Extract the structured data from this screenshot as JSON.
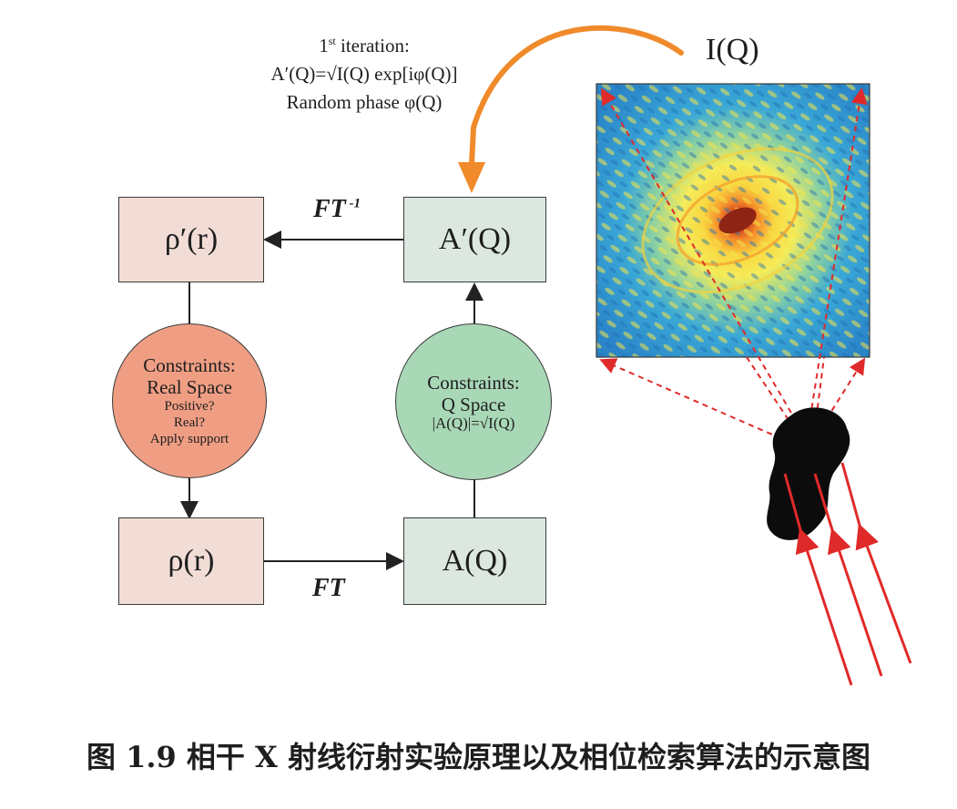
{
  "annotation": {
    "line1_pre": "1",
    "line1_sup": "st",
    "line1_post": " iteration:",
    "line2": "A′(Q)=√I(Q) exp[iφ(Q)]",
    "line3": "Random phase φ(Q)"
  },
  "intensity_label": "I(Q)",
  "boxes": {
    "rho_prime": "ρ′(r)",
    "a_prime": "A′(Q)",
    "rho": "ρ(r)",
    "a": "A(Q)"
  },
  "ft_inverse": {
    "base": "FT",
    "sup": " -1"
  },
  "ft_forward": "FT",
  "real_constraints": {
    "title1": "Constraints:",
    "title2": "Real Space",
    "item1": "Positive?",
    "item2": "Real?",
    "item3": "Apply support"
  },
  "q_constraints": {
    "title1": "Constraints:",
    "title2": "Q Space",
    "formula": "|A(Q)|=√I(Q)"
  },
  "caption": "图 1.9 相干 X 射线衍射实验原理以及相位检索算法的示意图",
  "colors": {
    "box_pink": "#f1ddd6",
    "box_green": "#dce8df",
    "circle_salmon": "#ef9e84",
    "circle_mint": "#a9d8b7",
    "orange_arrow": "#f08a2a",
    "red_beam": "#e02a2a"
  }
}
